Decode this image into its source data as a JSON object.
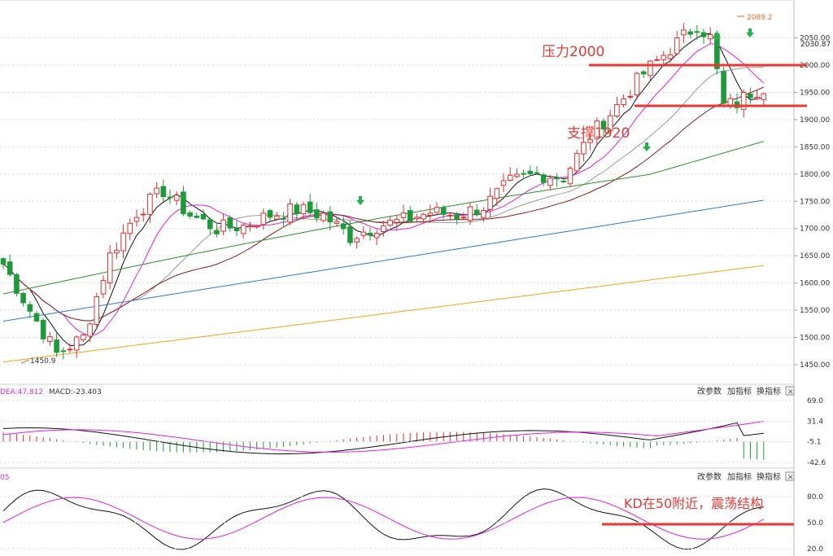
{
  "toolbar": {
    "change_params": "改参数",
    "add_indicator": "加指标",
    "switch_indicator": "换指标",
    "close": "×"
  },
  "annotations": {
    "resistance": "压力2000",
    "support": "支撑1920",
    "kd_note": "KD在50附近，震荡结构"
  },
  "colors": {
    "up": "#e0302f",
    "down": "#1e9a3a",
    "annotation": "#e53935",
    "grid": "#d9d9d9",
    "axis_text": "#333333",
    "ma5": "#111111",
    "ma10": "#e620e6",
    "ma20": "#9a9a9a",
    "ma30": "#8b1a1a",
    "ma60": "#2f8f2f",
    "ma120": "#2b7bd6",
    "ma250": "#f2a51a"
  },
  "chart_data": [
    {
      "type": "candlestick",
      "title": "",
      "ylim": [
        1420,
        2100
      ],
      "y_ticks": [
        "2050.00",
        "2000.00",
        "1950.00",
        "1900.00",
        "1850.00",
        "1800.00",
        "1750.00",
        "1700.00",
        "1650.00",
        "1600.00",
        "1550.00",
        "1500.00",
        "1450.00"
      ],
      "price_labels": {
        "last": "2030.87",
        "high": "2089.2",
        "low": "1450.9"
      },
      "levels": [
        {
          "name": "resistance",
          "value": 2000
        },
        {
          "name": "support",
          "value": 1920
        }
      ],
      "moving_averages": [
        {
          "name": "MA120",
          "start": 1530,
          "end": 1752
        },
        {
          "name": "MA250",
          "start": 1455,
          "end": 1632
        },
        {
          "name": "MA60",
          "start": 1580,
          "end": 1830
        }
      ],
      "price_path": [
        [
          0,
          1635
        ],
        [
          4,
          1550
        ],
        [
          8,
          1470
        ],
        [
          12,
          1500
        ],
        [
          16,
          1650
        ],
        [
          20,
          1730
        ],
        [
          24,
          1770
        ],
        [
          28,
          1725
        ],
        [
          32,
          1700
        ],
        [
          36,
          1705
        ],
        [
          40,
          1725
        ],
        [
          44,
          1735
        ],
        [
          48,
          1725
        ],
        [
          52,
          1685
        ],
        [
          56,
          1705
        ],
        [
          60,
          1715
        ],
        [
          64,
          1730
        ],
        [
          68,
          1725
        ],
        [
          72,
          1740
        ],
        [
          76,
          1785
        ],
        [
          80,
          1800
        ],
        [
          84,
          1795
        ],
        [
          88,
          1870
        ],
        [
          92,
          1925
        ],
        [
          96,
          1985
        ],
        [
          100,
          2030
        ],
        [
          104,
          2075
        ],
        [
          106,
          2050
        ],
        [
          108,
          1925
        ],
        [
          110,
          1930
        ],
        [
          112,
          1950
        ],
        [
          114,
          1960
        ]
      ],
      "grid": true
    },
    {
      "type": "macd",
      "header": {
        "dea": "DEA:47.812",
        "macd": "MACD:-23.403"
      },
      "y_ticks": [
        "69.0",
        "31.4",
        "-5.1",
        "-42.6"
      ],
      "ylim": [
        -42.6,
        69.0
      ]
    },
    {
      "type": "kd",
      "header": "05",
      "y_ticks": [
        "80.0",
        "50.0",
        "20.0"
      ],
      "ylim": [
        20.0,
        95.0
      ],
      "level": 50
    }
  ]
}
